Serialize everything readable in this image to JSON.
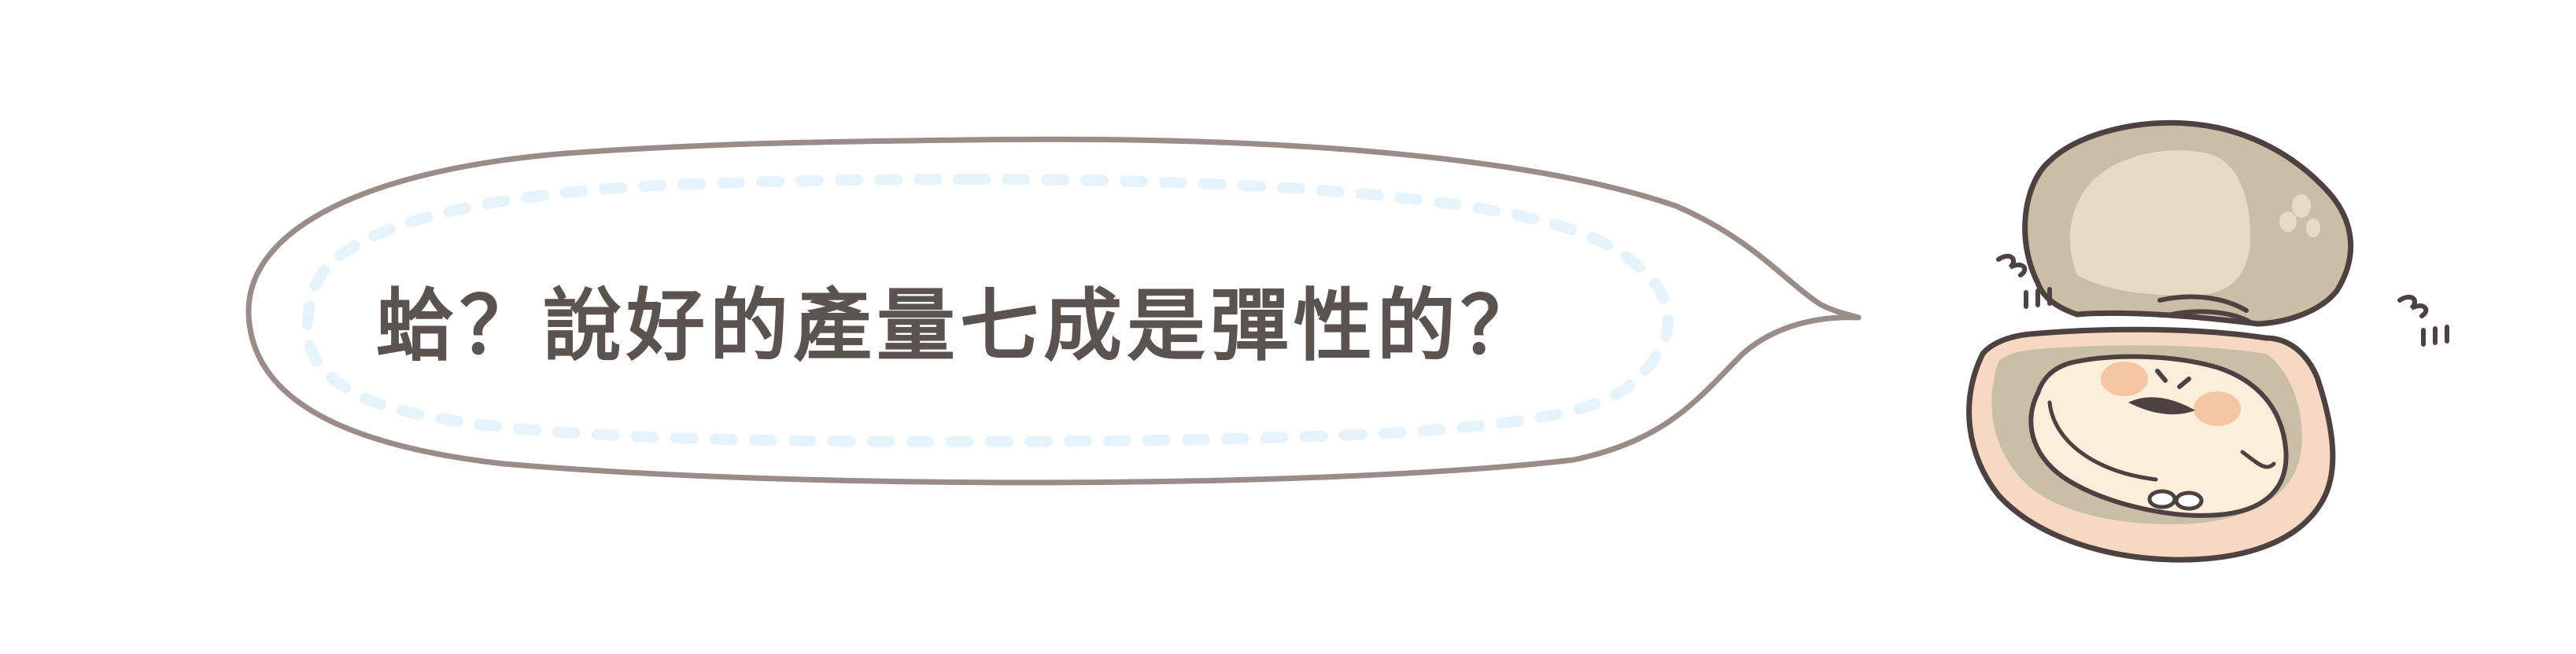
{
  "speech_bubble": {
    "text": "蛤？說好的產量七成是彈性的？"
  },
  "colors": {
    "outline": "#9a8c88",
    "dash": "#e6f3fb",
    "text": "#5b5350",
    "shell_top": "#c9bfa6",
    "shell_inner": "#e6dcc6",
    "shell_rim": "#f7d8c3",
    "clam_body": "#fbeedb",
    "cheek": "#f4c6a3",
    "ink": "#4d4241"
  },
  "illustration": {
    "subject": "clam-character"
  }
}
